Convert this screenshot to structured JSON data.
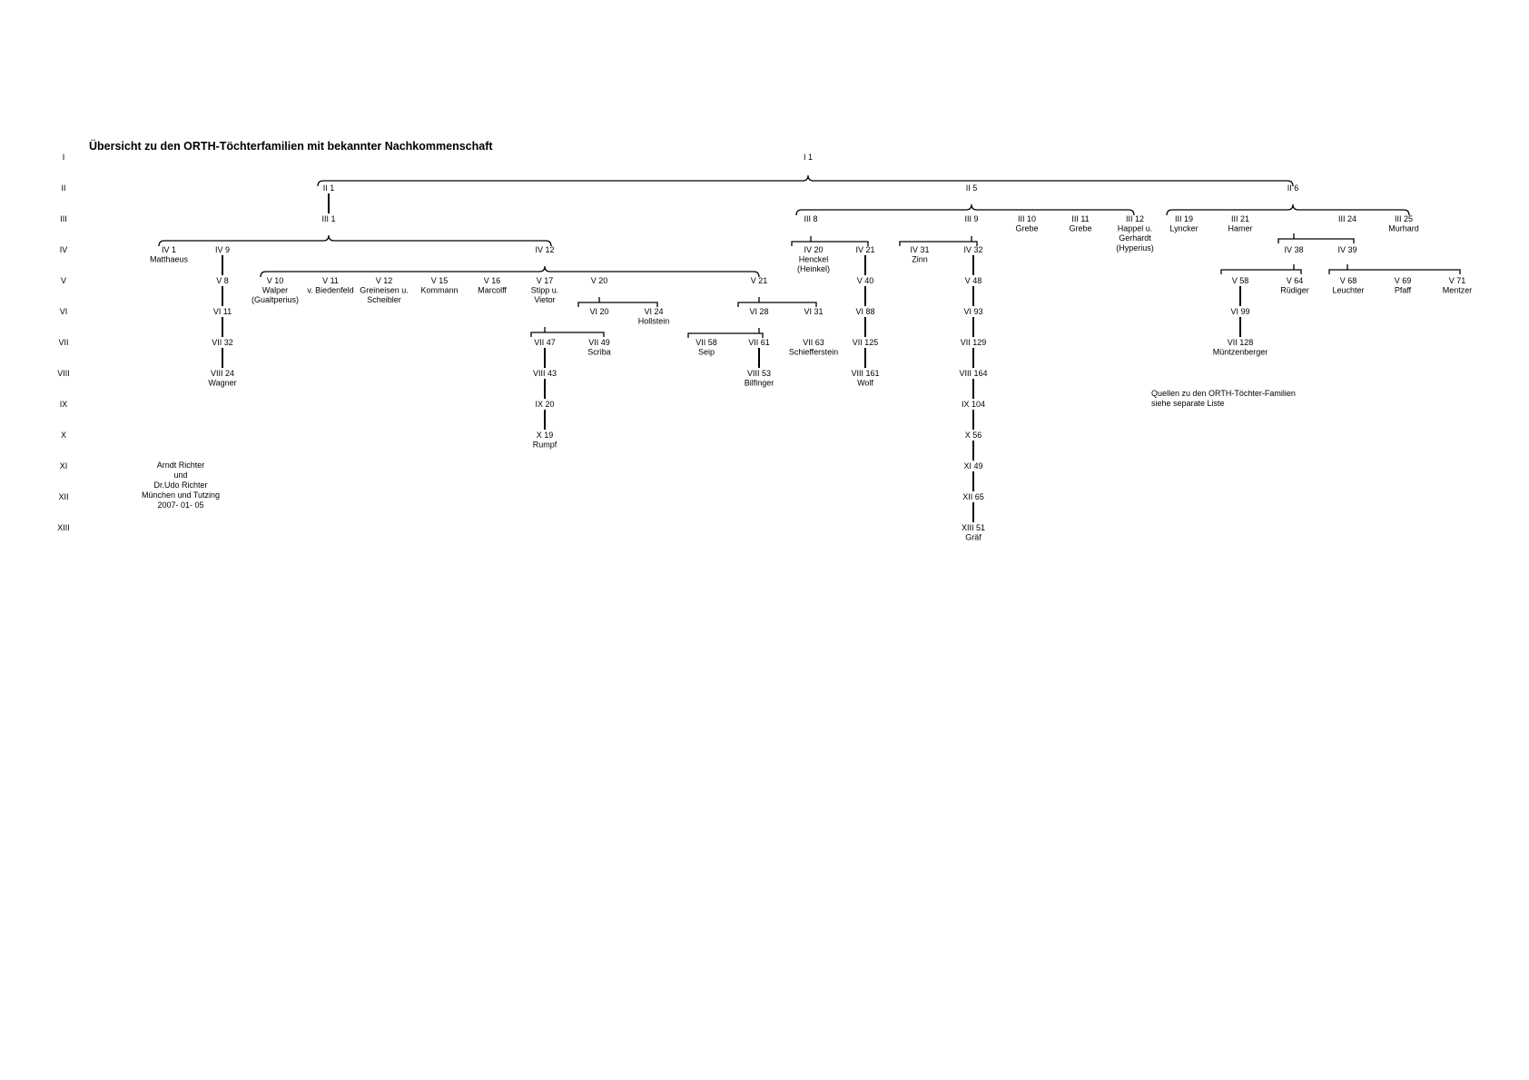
{
  "title": "Übersicht zu den ORTH-Töchterfamilien mit bekannter Nachkommenschaft",
  "generations": [
    "I",
    "II",
    "III",
    "IV",
    "V",
    "VI",
    "VII",
    "VIII",
    "IX",
    "X",
    "XI",
    "XII",
    "XIII"
  ],
  "nodes": [
    {
      "id": "I1",
      "lines": [
        "I 1"
      ]
    },
    {
      "id": "II1",
      "lines": [
        "II 1"
      ]
    },
    {
      "id": "II5",
      "lines": [
        "II 5"
      ]
    },
    {
      "id": "II6",
      "lines": [
        "II 6"
      ]
    },
    {
      "id": "III1",
      "lines": [
        "III 1"
      ]
    },
    {
      "id": "III8",
      "lines": [
        "III 8"
      ]
    },
    {
      "id": "III9",
      "lines": [
        "III 9"
      ]
    },
    {
      "id": "III10",
      "lines": [
        "III 10",
        "Grebe"
      ]
    },
    {
      "id": "III11",
      "lines": [
        "III 11",
        "Grebe"
      ]
    },
    {
      "id": "III12",
      "lines": [
        "III 12",
        "Happel u.",
        "Gerhardt",
        "(Hyperius)"
      ]
    },
    {
      "id": "III19",
      "lines": [
        "III 19",
        "Lyncker"
      ]
    },
    {
      "id": "III21",
      "lines": [
        "III 21",
        "Hamer"
      ]
    },
    {
      "id": "III24",
      "lines": [
        "III 24"
      ]
    },
    {
      "id": "III25",
      "lines": [
        "III 25",
        "Murhard"
      ]
    },
    {
      "id": "IV1",
      "lines": [
        "IV 1",
        "Matthaeus"
      ]
    },
    {
      "id": "IV9",
      "lines": [
        "IV 9"
      ]
    },
    {
      "id": "IV12",
      "lines": [
        "IV 12"
      ]
    },
    {
      "id": "IV20",
      "lines": [
        "IV 20",
        "Henckel",
        "(Heinkel)"
      ]
    },
    {
      "id": "IV21",
      "lines": [
        "IV 21"
      ]
    },
    {
      "id": "IV31",
      "lines": [
        "IV 31",
        "Zinn"
      ]
    },
    {
      "id": "IV32",
      "lines": [
        "IV 32"
      ]
    },
    {
      "id": "IV38",
      "lines": [
        "IV 38"
      ]
    },
    {
      "id": "IV39",
      "lines": [
        "IV 39"
      ]
    },
    {
      "id": "V8",
      "lines": [
        "V 8"
      ]
    },
    {
      "id": "V10",
      "lines": [
        "V 10",
        "Walper",
        "(Gualtperius)"
      ]
    },
    {
      "id": "V11",
      "lines": [
        "V 11",
        "v. Biedenfeld"
      ]
    },
    {
      "id": "V12",
      "lines": [
        "V 12",
        "Greineisen u.",
        "Scheibler"
      ]
    },
    {
      "id": "V15",
      "lines": [
        "V 15",
        "Kommann"
      ]
    },
    {
      "id": "V16",
      "lines": [
        "V 16",
        "Marcolff"
      ]
    },
    {
      "id": "V17",
      "lines": [
        "V 17",
        "Stipp u.",
        "Vietor"
      ]
    },
    {
      "id": "V20",
      "lines": [
        "V 20"
      ]
    },
    {
      "id": "V21",
      "lines": [
        "V 21"
      ]
    },
    {
      "id": "V40",
      "lines": [
        "V 40"
      ]
    },
    {
      "id": "V48",
      "lines": [
        "V 48"
      ]
    },
    {
      "id": "V58",
      "lines": [
        "V 58"
      ]
    },
    {
      "id": "V64",
      "lines": [
        "V 64",
        "Rüdiger"
      ]
    },
    {
      "id": "V68",
      "lines": [
        "V 68",
        "Leuchter"
      ]
    },
    {
      "id": "V69",
      "lines": [
        "V 69",
        "Pfaff"
      ]
    },
    {
      "id": "V71",
      "lines": [
        "V 71",
        "Mentzer"
      ]
    },
    {
      "id": "VI11",
      "lines": [
        "VI 11"
      ]
    },
    {
      "id": "VI20",
      "lines": [
        "VI 20"
      ]
    },
    {
      "id": "VI24",
      "lines": [
        "VI 24",
        "Hollstein"
      ]
    },
    {
      "id": "VI28",
      "lines": [
        "VI 28"
      ]
    },
    {
      "id": "VI31",
      "lines": [
        "VI 31"
      ]
    },
    {
      "id": "VI88",
      "lines": [
        "VI 88"
      ]
    },
    {
      "id": "VI93",
      "lines": [
        "VI 93"
      ]
    },
    {
      "id": "VI99",
      "lines": [
        "VI 99"
      ]
    },
    {
      "id": "VII32",
      "lines": [
        "VII 32"
      ]
    },
    {
      "id": "VII47",
      "lines": [
        "VII 47"
      ]
    },
    {
      "id": "VII49",
      "lines": [
        "VII 49",
        "Scriba"
      ]
    },
    {
      "id": "VII58",
      "lines": [
        "VII 58",
        "Seip"
      ]
    },
    {
      "id": "VII61",
      "lines": [
        "VII 61"
      ]
    },
    {
      "id": "VII63",
      "lines": [
        "VII 63",
        "Schiefferstein"
      ]
    },
    {
      "id": "VII125",
      "lines": [
        "VII 125"
      ]
    },
    {
      "id": "VII129",
      "lines": [
        "VII 129"
      ]
    },
    {
      "id": "VII128",
      "lines": [
        "VII 128",
        "Müntzenberger"
      ]
    },
    {
      "id": "VIII24",
      "lines": [
        "VIII 24",
        "Wagner"
      ]
    },
    {
      "id": "VIII43",
      "lines": [
        "VIII 43"
      ]
    },
    {
      "id": "VIII53",
      "lines": [
        "VIII 53",
        "Bilfinger"
      ]
    },
    {
      "id": "VIII161",
      "lines": [
        "VIII 161",
        "Wolf"
      ]
    },
    {
      "id": "VIII164",
      "lines": [
        "VIII 164"
      ]
    },
    {
      "id": "IX20",
      "lines": [
        "IX 20"
      ]
    },
    {
      "id": "IX104",
      "lines": [
        "IX 104"
      ]
    },
    {
      "id": "X19",
      "lines": [
        "X 19",
        "Rumpf"
      ]
    },
    {
      "id": "X56",
      "lines": [
        "X 56"
      ]
    },
    {
      "id": "XI49",
      "lines": [
        "XI 49"
      ]
    },
    {
      "id": "XII65",
      "lines": [
        "XII 65"
      ]
    },
    {
      "id": "XIII51",
      "lines": [
        "XIII 51",
        "Gräf"
      ]
    }
  ],
  "author_note": [
    "Arndt Richter",
    "und",
    "Dr.Udo Richter",
    "München und Tutzing",
    "2007- 01- 05"
  ],
  "sources_note": [
    "Quellen zu den ORTH-Töchter-Familien",
    "siehe separate Liste"
  ]
}
